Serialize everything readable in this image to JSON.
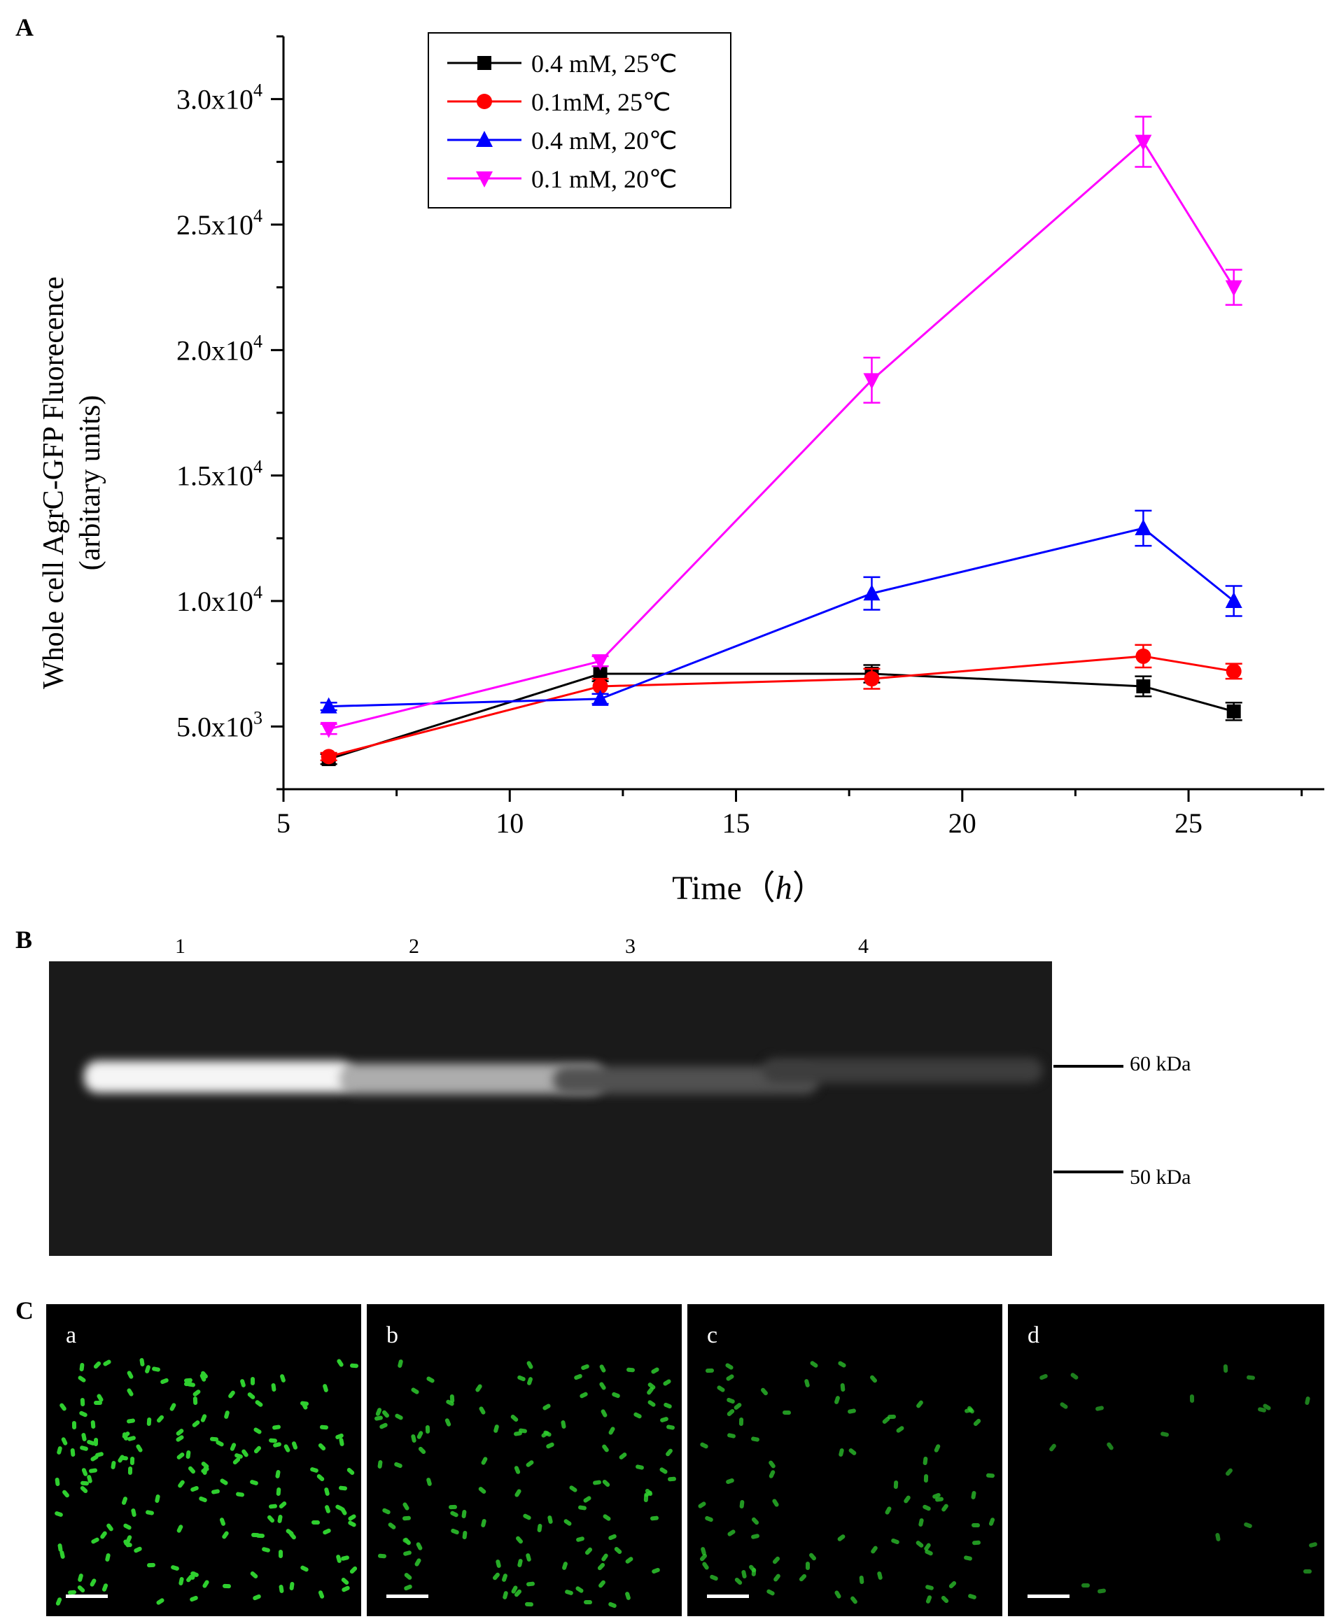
{
  "panels": {
    "a": "A",
    "b": "B",
    "c": "C"
  },
  "chart_data": {
    "type": "line",
    "title": "",
    "xlabel": "Time（h）",
    "xlabel_main": "Time（",
    "xlabel_unit": "h",
    "xlabel_close": "）",
    "ylabel": "Whole cell AgrC-GFP Fluorecence",
    "ylabel2": "(arbitary units)",
    "xlim": [
      5,
      28
    ],
    "ylim": [
      2500,
      32500
    ],
    "xticks": [
      5,
      10,
      15,
      20,
      25
    ],
    "yticks": [
      {
        "value": 5000,
        "mantissa": "5.0x10",
        "exp": "3"
      },
      {
        "value": 10000,
        "mantissa": "1.0x10",
        "exp": "4"
      },
      {
        "value": 15000,
        "mantissa": "1.5x10",
        "exp": "4"
      },
      {
        "value": 20000,
        "mantissa": "2.0x10",
        "exp": "4"
      },
      {
        "value": 25000,
        "mantissa": "2.5x10",
        "exp": "4"
      },
      {
        "value": 30000,
        "mantissa": "3.0x10",
        "exp": "4"
      }
    ],
    "legend_position": "top-left",
    "series": [
      {
        "name": "0.4 mM, 25℃",
        "color": "#000000",
        "marker": "square",
        "x": [
          6,
          12,
          18,
          24,
          26
        ],
        "y": [
          3700,
          7100,
          7100,
          6600,
          5600
        ],
        "err": [
          200,
          300,
          350,
          400,
          350
        ]
      },
      {
        "name": "0.1mM,  25℃",
        "color": "#ff0000",
        "marker": "circle",
        "x": [
          6,
          12,
          18,
          24,
          26
        ],
        "y": [
          3800,
          6600,
          6900,
          7800,
          7200
        ],
        "err": [
          150,
          300,
          400,
          450,
          300
        ]
      },
      {
        "name": "0.4 mM, 20℃",
        "color": "#0000ff",
        "marker": "triangle-up",
        "x": [
          6,
          12,
          18,
          24,
          26
        ],
        "y": [
          5800,
          6100,
          10300,
          12900,
          10000
        ],
        "err": [
          150,
          200,
          650,
          700,
          600
        ]
      },
      {
        "name": "0.1 mM, 20℃",
        "color": "#ff00ff",
        "marker": "triangle-down",
        "x": [
          6,
          12,
          18,
          24,
          26
        ],
        "y": [
          4900,
          7600,
          18800,
          28300,
          22500
        ],
        "err": [
          200,
          200,
          900,
          1000,
          700
        ]
      }
    ]
  },
  "gel": {
    "lanes": [
      "1",
      "2",
      "3",
      "4"
    ],
    "markers": [
      {
        "label": "60 kDa"
      },
      {
        "label": "50 kDa"
      }
    ],
    "band_intensity": [
      1.0,
      0.65,
      0.2,
      0.1
    ]
  },
  "micrographs": [
    {
      "label": "a",
      "density": 1.0
    },
    {
      "label": "b",
      "density": 0.7
    },
    {
      "label": "c",
      "density": 0.5
    },
    {
      "label": "d",
      "density": 0.12
    }
  ],
  "colors": {
    "cell_green": "#2fcf2f",
    "gel_bg": "#1a1a1a"
  }
}
